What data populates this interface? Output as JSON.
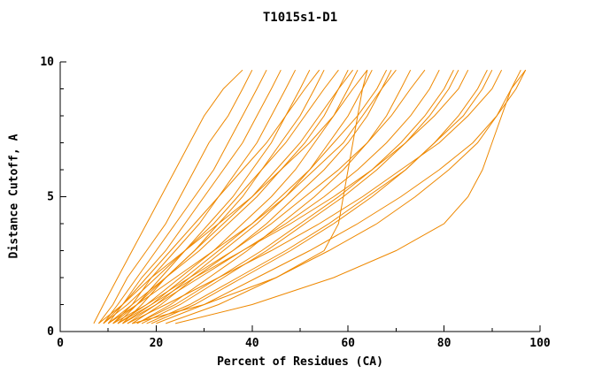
{
  "title": "T1015s1-D1",
  "chart_data": {
    "type": "line",
    "title": "T1015s1-D1",
    "xlabel": "Percent of Residues (CA)",
    "ylabel": "Distance Cutoff, A",
    "xlim": [
      0,
      100
    ],
    "ylim": [
      0,
      10
    ],
    "x_ticks": [
      0,
      20,
      40,
      60,
      80,
      100
    ],
    "x_minor_ticks": [
      10,
      30,
      50,
      70,
      90
    ],
    "y_ticks": [
      0,
      5,
      10
    ],
    "y_minor_ticks": [
      1,
      2,
      3,
      4,
      6,
      7,
      8,
      9
    ],
    "grid": false,
    "legend": "none",
    "line_color": "#ee8800",
    "axis_color": "#000000",
    "background_color": "#ffffff",
    "series_count": 30,
    "y_points": [
      0.3,
      1,
      2,
      3,
      4,
      5,
      6,
      7,
      8,
      9,
      9.7
    ],
    "series": [
      [
        7,
        9,
        12,
        15,
        18,
        21,
        24,
        27,
        30,
        34,
        38
      ],
      [
        8,
        11,
        14,
        18,
        22,
        25,
        28,
        31,
        35,
        38,
        40
      ],
      [
        9,
        12,
        16,
        20,
        24,
        28,
        32,
        35,
        38,
        41,
        43
      ],
      [
        10,
        13,
        17,
        22,
        26,
        30,
        34,
        38,
        41,
        44,
        46
      ],
      [
        11,
        15,
        19,
        24,
        29,
        33,
        37,
        41,
        44,
        47,
        49
      ],
      [
        12,
        16,
        21,
        26,
        31,
        36,
        40,
        44,
        47,
        50,
        52
      ],
      [
        13,
        17,
        22,
        28,
        33,
        38,
        42,
        46,
        50,
        53,
        55
      ],
      [
        9,
        14,
        20,
        26,
        32,
        37,
        42,
        47,
        51,
        55,
        58
      ],
      [
        10,
        15,
        22,
        29,
        35,
        41,
        46,
        51,
        55,
        58,
        60
      ],
      [
        12,
        18,
        25,
        32,
        38,
        44,
        49,
        53,
        57,
        60,
        62
      ],
      [
        14,
        20,
        27,
        34,
        41,
        47,
        52,
        56,
        60,
        63,
        65
      ],
      [
        8,
        13,
        19,
        26,
        33,
        40,
        46,
        52,
        57,
        61,
        64
      ],
      [
        15,
        21,
        28,
        36,
        43,
        49,
        55,
        60,
        64,
        67,
        69
      ],
      [
        10,
        16,
        24,
        32,
        40,
        47,
        53,
        59,
        63,
        67,
        70
      ],
      [
        16,
        23,
        31,
        39,
        46,
        53,
        59,
        64,
        68,
        71,
        73
      ],
      [
        11,
        18,
        27,
        36,
        44,
        51,
        58,
        64,
        69,
        73,
        76
      ],
      [
        13,
        20,
        29,
        38,
        47,
        55,
        62,
        68,
        73,
        77,
        79
      ],
      [
        17,
        25,
        34,
        43,
        51,
        59,
        66,
        72,
        77,
        81,
        83
      ],
      [
        12,
        19,
        28,
        38,
        48,
        57,
        65,
        72,
        78,
        83,
        85
      ],
      [
        18,
        27,
        37,
        47,
        56,
        64,
        72,
        78,
        84,
        88,
        90
      ],
      [
        14,
        22,
        33,
        44,
        54,
        63,
        71,
        79,
        85,
        90,
        92
      ],
      [
        20,
        30,
        41,
        52,
        62,
        71,
        79,
        86,
        91,
        95,
        97
      ],
      [
        24,
        40,
        57,
        70,
        80,
        85,
        88,
        90,
        92,
        94,
        97
      ],
      [
        15,
        30,
        45,
        55,
        58,
        59,
        60,
        61,
        62,
        63,
        64
      ],
      [
        9,
        13,
        18,
        23,
        28,
        33,
        38,
        43,
        47,
        51,
        54
      ],
      [
        11,
        16,
        22,
        28,
        34,
        40,
        45,
        50,
        54,
        58,
        61
      ],
      [
        13,
        19,
        26,
        33,
        40,
        46,
        52,
        57,
        62,
        66,
        68
      ],
      [
        16,
        24,
        33,
        42,
        50,
        58,
        65,
        71,
        76,
        80,
        82
      ],
      [
        19,
        28,
        38,
        48,
        57,
        65,
        72,
        78,
        83,
        87,
        89
      ],
      [
        22,
        33,
        45,
        56,
        66,
        74,
        81,
        87,
        91,
        94,
        96
      ]
    ]
  }
}
